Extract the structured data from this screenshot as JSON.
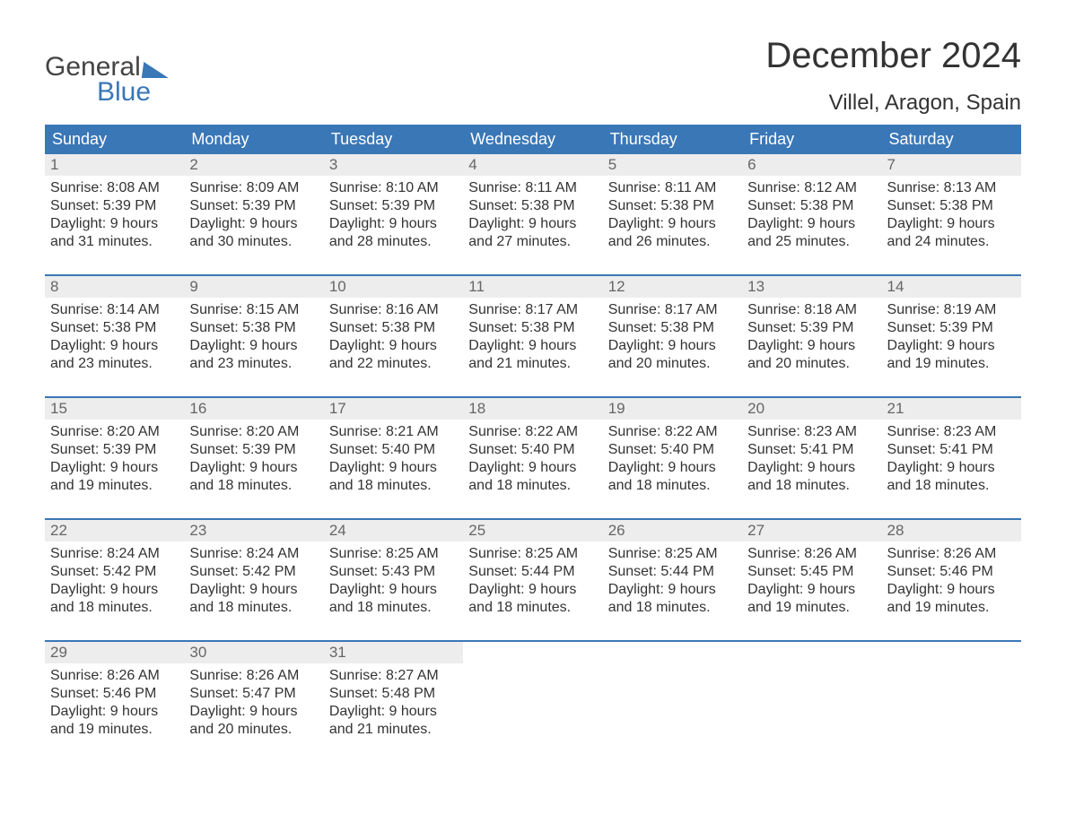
{
  "colors": {
    "accent": "#3a77b7",
    "header_bg": "#3a77b7",
    "header_text": "#ffffff",
    "date_bg": "#ededed",
    "date_text": "#666666",
    "body_text": "#333333",
    "page_bg": "#ffffff"
  },
  "typography": {
    "font_family": "Arial, Helvetica, sans-serif",
    "month_title_size_pt": 30,
    "location_size_pt": 18,
    "day_header_size_pt": 13,
    "cell_size_pt": 12
  },
  "logo": {
    "line1": "General",
    "line2": "Blue"
  },
  "title": "December 2024",
  "location": "Villel, Aragon, Spain",
  "day_headers": [
    "Sunday",
    "Monday",
    "Tuesday",
    "Wednesday",
    "Thursday",
    "Friday",
    "Saturday"
  ],
  "weeks": [
    [
      {
        "date": "1",
        "sunrise": "Sunrise: 8:08 AM",
        "sunset": "Sunset: 5:39 PM",
        "daylight1": "Daylight: 9 hours",
        "daylight2": "and 31 minutes."
      },
      {
        "date": "2",
        "sunrise": "Sunrise: 8:09 AM",
        "sunset": "Sunset: 5:39 PM",
        "daylight1": "Daylight: 9 hours",
        "daylight2": "and 30 minutes."
      },
      {
        "date": "3",
        "sunrise": "Sunrise: 8:10 AM",
        "sunset": "Sunset: 5:39 PM",
        "daylight1": "Daylight: 9 hours",
        "daylight2": "and 28 minutes."
      },
      {
        "date": "4",
        "sunrise": "Sunrise: 8:11 AM",
        "sunset": "Sunset: 5:38 PM",
        "daylight1": "Daylight: 9 hours",
        "daylight2": "and 27 minutes."
      },
      {
        "date": "5",
        "sunrise": "Sunrise: 8:11 AM",
        "sunset": "Sunset: 5:38 PM",
        "daylight1": "Daylight: 9 hours",
        "daylight2": "and 26 minutes."
      },
      {
        "date": "6",
        "sunrise": "Sunrise: 8:12 AM",
        "sunset": "Sunset: 5:38 PM",
        "daylight1": "Daylight: 9 hours",
        "daylight2": "and 25 minutes."
      },
      {
        "date": "7",
        "sunrise": "Sunrise: 8:13 AM",
        "sunset": "Sunset: 5:38 PM",
        "daylight1": "Daylight: 9 hours",
        "daylight2": "and 24 minutes."
      }
    ],
    [
      {
        "date": "8",
        "sunrise": "Sunrise: 8:14 AM",
        "sunset": "Sunset: 5:38 PM",
        "daylight1": "Daylight: 9 hours",
        "daylight2": "and 23 minutes."
      },
      {
        "date": "9",
        "sunrise": "Sunrise: 8:15 AM",
        "sunset": "Sunset: 5:38 PM",
        "daylight1": "Daylight: 9 hours",
        "daylight2": "and 23 minutes."
      },
      {
        "date": "10",
        "sunrise": "Sunrise: 8:16 AM",
        "sunset": "Sunset: 5:38 PM",
        "daylight1": "Daylight: 9 hours",
        "daylight2": "and 22 minutes."
      },
      {
        "date": "11",
        "sunrise": "Sunrise: 8:17 AM",
        "sunset": "Sunset: 5:38 PM",
        "daylight1": "Daylight: 9 hours",
        "daylight2": "and 21 minutes."
      },
      {
        "date": "12",
        "sunrise": "Sunrise: 8:17 AM",
        "sunset": "Sunset: 5:38 PM",
        "daylight1": "Daylight: 9 hours",
        "daylight2": "and 20 minutes."
      },
      {
        "date": "13",
        "sunrise": "Sunrise: 8:18 AM",
        "sunset": "Sunset: 5:39 PM",
        "daylight1": "Daylight: 9 hours",
        "daylight2": "and 20 minutes."
      },
      {
        "date": "14",
        "sunrise": "Sunrise: 8:19 AM",
        "sunset": "Sunset: 5:39 PM",
        "daylight1": "Daylight: 9 hours",
        "daylight2": "and 19 minutes."
      }
    ],
    [
      {
        "date": "15",
        "sunrise": "Sunrise: 8:20 AM",
        "sunset": "Sunset: 5:39 PM",
        "daylight1": "Daylight: 9 hours",
        "daylight2": "and 19 minutes."
      },
      {
        "date": "16",
        "sunrise": "Sunrise: 8:20 AM",
        "sunset": "Sunset: 5:39 PM",
        "daylight1": "Daylight: 9 hours",
        "daylight2": "and 18 minutes."
      },
      {
        "date": "17",
        "sunrise": "Sunrise: 8:21 AM",
        "sunset": "Sunset: 5:40 PM",
        "daylight1": "Daylight: 9 hours",
        "daylight2": "and 18 minutes."
      },
      {
        "date": "18",
        "sunrise": "Sunrise: 8:22 AM",
        "sunset": "Sunset: 5:40 PM",
        "daylight1": "Daylight: 9 hours",
        "daylight2": "and 18 minutes."
      },
      {
        "date": "19",
        "sunrise": "Sunrise: 8:22 AM",
        "sunset": "Sunset: 5:40 PM",
        "daylight1": "Daylight: 9 hours",
        "daylight2": "and 18 minutes."
      },
      {
        "date": "20",
        "sunrise": "Sunrise: 8:23 AM",
        "sunset": "Sunset: 5:41 PM",
        "daylight1": "Daylight: 9 hours",
        "daylight2": "and 18 minutes."
      },
      {
        "date": "21",
        "sunrise": "Sunrise: 8:23 AM",
        "sunset": "Sunset: 5:41 PM",
        "daylight1": "Daylight: 9 hours",
        "daylight2": "and 18 minutes."
      }
    ],
    [
      {
        "date": "22",
        "sunrise": "Sunrise: 8:24 AM",
        "sunset": "Sunset: 5:42 PM",
        "daylight1": "Daylight: 9 hours",
        "daylight2": "and 18 minutes."
      },
      {
        "date": "23",
        "sunrise": "Sunrise: 8:24 AM",
        "sunset": "Sunset: 5:42 PM",
        "daylight1": "Daylight: 9 hours",
        "daylight2": "and 18 minutes."
      },
      {
        "date": "24",
        "sunrise": "Sunrise: 8:25 AM",
        "sunset": "Sunset: 5:43 PM",
        "daylight1": "Daylight: 9 hours",
        "daylight2": "and 18 minutes."
      },
      {
        "date": "25",
        "sunrise": "Sunrise: 8:25 AM",
        "sunset": "Sunset: 5:44 PM",
        "daylight1": "Daylight: 9 hours",
        "daylight2": "and 18 minutes."
      },
      {
        "date": "26",
        "sunrise": "Sunrise: 8:25 AM",
        "sunset": "Sunset: 5:44 PM",
        "daylight1": "Daylight: 9 hours",
        "daylight2": "and 18 minutes."
      },
      {
        "date": "27",
        "sunrise": "Sunrise: 8:26 AM",
        "sunset": "Sunset: 5:45 PM",
        "daylight1": "Daylight: 9 hours",
        "daylight2": "and 19 minutes."
      },
      {
        "date": "28",
        "sunrise": "Sunrise: 8:26 AM",
        "sunset": "Sunset: 5:46 PM",
        "daylight1": "Daylight: 9 hours",
        "daylight2": "and 19 minutes."
      }
    ],
    [
      {
        "date": "29",
        "sunrise": "Sunrise: 8:26 AM",
        "sunset": "Sunset: 5:46 PM",
        "daylight1": "Daylight: 9 hours",
        "daylight2": "and 19 minutes."
      },
      {
        "date": "30",
        "sunrise": "Sunrise: 8:26 AM",
        "sunset": "Sunset: 5:47 PM",
        "daylight1": "Daylight: 9 hours",
        "daylight2": "and 20 minutes."
      },
      {
        "date": "31",
        "sunrise": "Sunrise: 8:27 AM",
        "sunset": "Sunset: 5:48 PM",
        "daylight1": "Daylight: 9 hours",
        "daylight2": "and 21 minutes."
      },
      {
        "date": "",
        "sunrise": "",
        "sunset": "",
        "daylight1": "",
        "daylight2": ""
      },
      {
        "date": "",
        "sunrise": "",
        "sunset": "",
        "daylight1": "",
        "daylight2": ""
      },
      {
        "date": "",
        "sunrise": "",
        "sunset": "",
        "daylight1": "",
        "daylight2": ""
      },
      {
        "date": "",
        "sunrise": "",
        "sunset": "",
        "daylight1": "",
        "daylight2": ""
      }
    ]
  ]
}
